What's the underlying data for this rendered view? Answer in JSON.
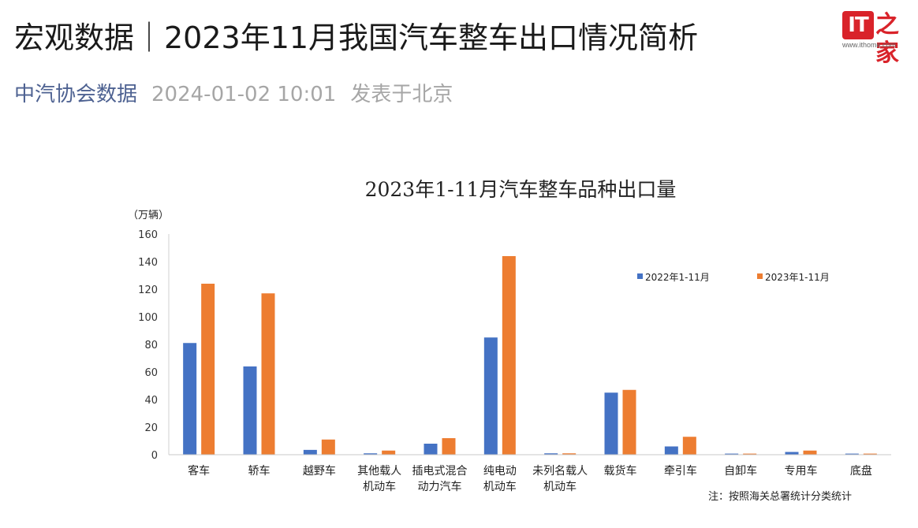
{
  "article": {
    "title": "宏观数据｜2023年11月我国汽车整车出口情况简析",
    "source": "中汽协会数据",
    "datetime": "2024-01-02 10:01",
    "location": "发表于北京"
  },
  "logo": {
    "badge_text": "IT",
    "glyph_text": "之家",
    "url": "www.ithome.com"
  },
  "chart_data": {
    "type": "bar",
    "title": "2023年1-11月汽车整车品种出口量",
    "unit_label": "（万辆）",
    "ylim": [
      0,
      160
    ],
    "yticks": [
      0,
      20,
      40,
      60,
      80,
      100,
      120,
      140,
      160
    ],
    "grid": false,
    "legend_position": "top-right",
    "categories": [
      [
        "客车"
      ],
      [
        "轿车"
      ],
      [
        "越野车"
      ],
      [
        "其他载人",
        "机动车"
      ],
      [
        "插电式混合",
        "动力汽车"
      ],
      [
        "纯电动",
        "机动车"
      ],
      [
        "未列名载人",
        "机动车"
      ],
      [
        "载货车"
      ],
      [
        "牵引车"
      ],
      [
        "自卸车"
      ],
      [
        "专用车"
      ],
      [
        "底盘"
      ]
    ],
    "series": [
      {
        "name": "2022年1-11月",
        "color": "#4472c4",
        "values": [
          81,
          64,
          3.5,
          1.0,
          8,
          85,
          1.0,
          45,
          6,
          0.8,
          2.0,
          0.8
        ]
      },
      {
        "name": "2023年1-11月",
        "color": "#ed7d31",
        "values": [
          124,
          117,
          11,
          3,
          12,
          144,
          1.0,
          47,
          13,
          0.8,
          3,
          0.8
        ]
      }
    ],
    "note": "注：按照海关总署统计分类统计"
  }
}
